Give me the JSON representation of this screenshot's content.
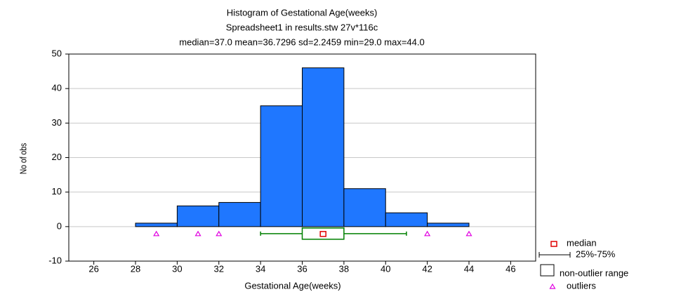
{
  "chart_data": {
    "type": "histogram",
    "title": "Histogram of Gestational Age(weeks)",
    "subtitle": "Spreadsheet1 in results.stw 27v*116c",
    "annotation": "median=37.0  mean=36.7296  sd=2.2459  min=29.0  max=44.0",
    "xlabel": "Gestational Age(weeks)",
    "ylabel": "No of obs",
    "bins": [
      28,
      30,
      32,
      34,
      36,
      38,
      40,
      42,
      44
    ],
    "values": [
      1,
      6,
      7,
      35,
      46,
      11,
      4,
      1
    ],
    "color": "#1f77ff",
    "xlim": [
      24.8,
      47.2
    ],
    "xticks": [
      26,
      28,
      30,
      32,
      34,
      36,
      38,
      40,
      42,
      44,
      46
    ],
    "ylim": [
      -10,
      50
    ],
    "yticks": [
      -10,
      0,
      10,
      20,
      30,
      40,
      50
    ],
    "grid": true,
    "box": {
      "median": 37,
      "q1": 36,
      "q3": 38,
      "whisker_low": 34,
      "whisker_high": 41,
      "outliers": [
        29,
        31,
        32,
        42,
        44
      ],
      "box_color": "#008000",
      "median_color": "#e00000",
      "outlier_color": "#e000e0"
    },
    "legend": {
      "position": "bottom right",
      "entries": [
        "median",
        "25%-75%",
        "non-outlier range",
        "outliers"
      ]
    }
  }
}
